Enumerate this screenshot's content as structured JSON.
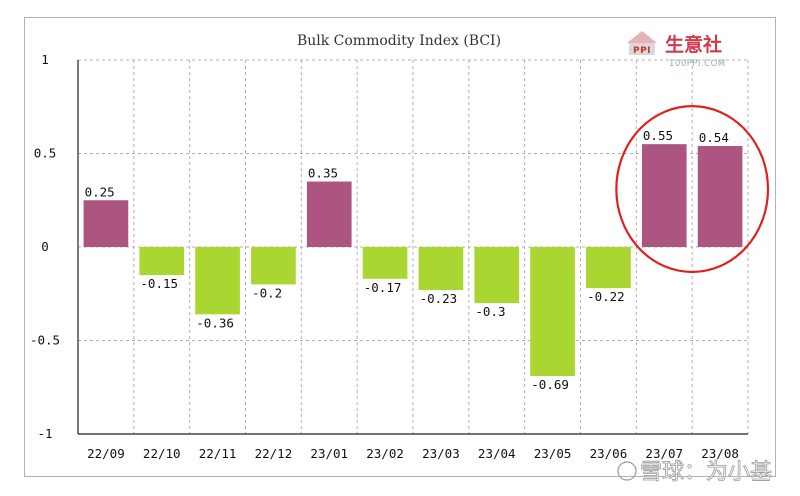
{
  "chart_data": {
    "type": "bar",
    "title": "Bulk Commodity Index (BCI)",
    "categories": [
      "22/09",
      "22/10",
      "22/11",
      "22/12",
      "23/01",
      "23/02",
      "23/03",
      "23/04",
      "23/05",
      "23/06",
      "23/07",
      "23/08"
    ],
    "values": [
      0.25,
      -0.15,
      -0.36,
      -0.2,
      0.35,
      -0.17,
      -0.23,
      -0.3,
      -0.69,
      -0.22,
      0.55,
      0.54
    ],
    "value_labels": [
      "0.25",
      "-0.15",
      "-0.36",
      "-0.2",
      "0.35",
      "-0.17",
      "-0.23",
      "-0.3",
      "-0.69",
      "-0.22",
      "0.55",
      "0.54"
    ],
    "ylim": [
      -1,
      1
    ],
    "yticks": [
      1,
      0.5,
      0,
      -0.5,
      -1
    ],
    "ytick_labels": [
      "1",
      "0.5",
      "0",
      "-0.5",
      "-1"
    ],
    "grid": true,
    "positive_color": "#ad5581",
    "negative_color": "#a9d630",
    "annotation_color": "#e02020",
    "highlighted_categories": [
      "23/07",
      "23/08"
    ]
  },
  "logo": {
    "text": "生意社",
    "url": "100PPI.COM",
    "badge": "PPI"
  },
  "watermark": {
    "text": "雪球：为小基"
  }
}
